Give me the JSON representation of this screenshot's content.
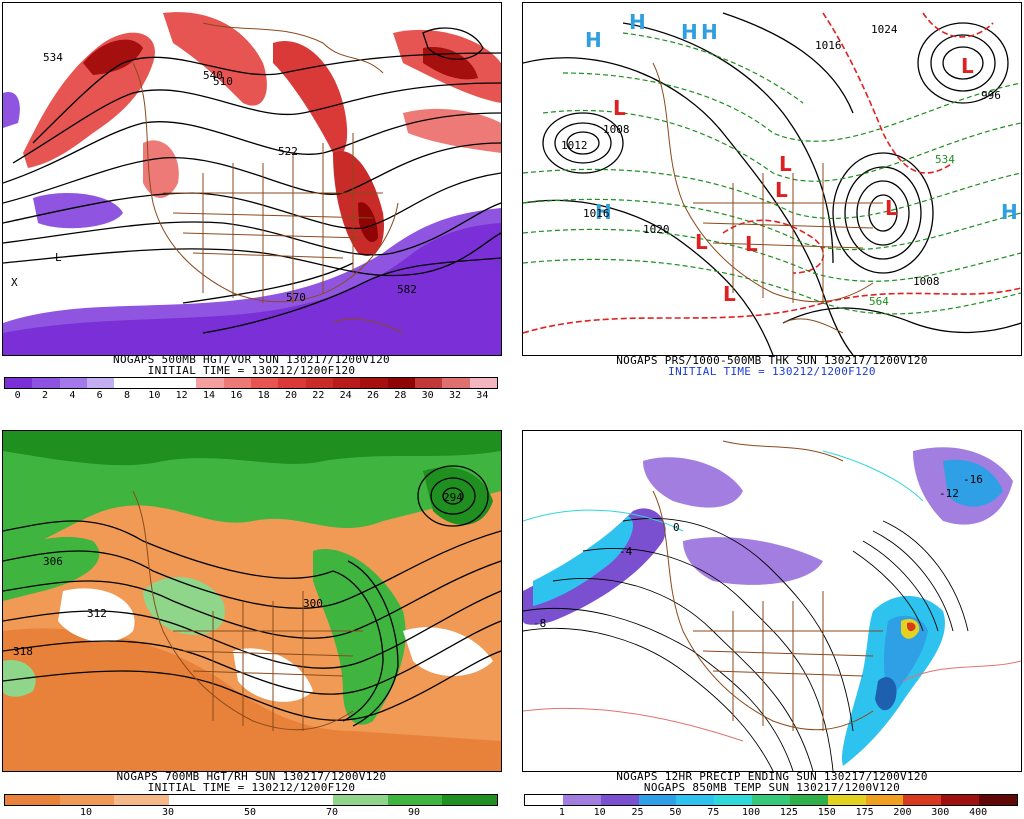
{
  "panels": {
    "vor500": {
      "caption1": "NOGAPS 500MB HGT/VOR SUN 130217/1200V120",
      "caption2": "INITIAL TIME = 130212/1200F120",
      "scale_labels": [
        "0",
        "2",
        "4",
        "6",
        "8",
        "10",
        "12",
        "14",
        "16",
        "18",
        "20",
        "22",
        "24",
        "26",
        "28",
        "30",
        "32",
        "34"
      ],
      "scale_colors": [
        "#7b2fd6",
        "#8d52e0",
        "#a278ea",
        "#c4aef2",
        "#ffffff",
        "#ffffff",
        "#ffffff",
        "#f4a0a0",
        "#ee7a78",
        "#e65552",
        "#d93a38",
        "#c92b28",
        "#b81c1a",
        "#a5100f",
        "#8f0505",
        "#c03838",
        "#e07070",
        "#f3b6c0"
      ],
      "contour_labels": [
        "534",
        "540",
        "510",
        "522",
        "582",
        "570",
        "L",
        "X"
      ]
    },
    "thk": {
      "caption1": "NOGAPS PRS/1000-500MB THK SUN 130217/1200V120",
      "caption2": "INITIAL TIME = 130212/1200F120",
      "caption2_color": "#1a3dd8",
      "highs": [
        "H",
        "H",
        "H",
        "H",
        "H",
        "H"
      ],
      "lows": [
        "L",
        "L",
        "L",
        "L",
        "L",
        "L",
        "L",
        "L"
      ],
      "contour_labels": [
        "1012",
        "1020",
        "1016",
        "1008",
        "996",
        "1024",
        "564",
        "534",
        "1008",
        "1016"
      ],
      "high_color": "#2f9fe0",
      "low_color": "#e02020"
    },
    "rh700": {
      "caption1": "NOGAPS 700MB HGT/RH SUN 130217/1200V120",
      "caption2": "INITIAL TIME = 130212/1200F120",
      "scale_labels": [
        "10",
        "30",
        "50",
        "70",
        "90"
      ],
      "scale_colors": [
        "#e8813a",
        "#f09a55",
        "#f7b987",
        "#ffffff",
        "#ffffff",
        "#ffffff",
        "#8fd68a",
        "#3fb53f",
        "#1f8f1f"
      ],
      "contour_labels": [
        "318",
        "312",
        "306",
        "300",
        "294"
      ]
    },
    "precip": {
      "caption1": "NOGAPS 12HR PRECIP ENDING SUN 130217/1200V120",
      "caption2": "NOGAPS 850MB TEMP SUN 130217/1200V120",
      "scale_labels": [
        "1",
        "10",
        "25",
        "50",
        "75",
        "100",
        "125",
        "150",
        "175",
        "200",
        "300",
        "400"
      ],
      "scale_colors": [
        "#ffffff",
        "#a27ee0",
        "#7a4fd0",
        "#2f9fe6",
        "#2ec3ef",
        "#2fd9d9",
        "#36c97a",
        "#2fb04a",
        "#e3d21f",
        "#f0a020",
        "#d83a20",
        "#a01010",
        "#600808"
      ],
      "contour_labels": [
        "-8",
        "-4",
        "0",
        "-12",
        "-16"
      ]
    }
  },
  "colors": {
    "border_brown": "#8a4a1c",
    "contour_black": "#000000",
    "green_dash": "#1f8f1f",
    "red_dash": "#e02020"
  }
}
